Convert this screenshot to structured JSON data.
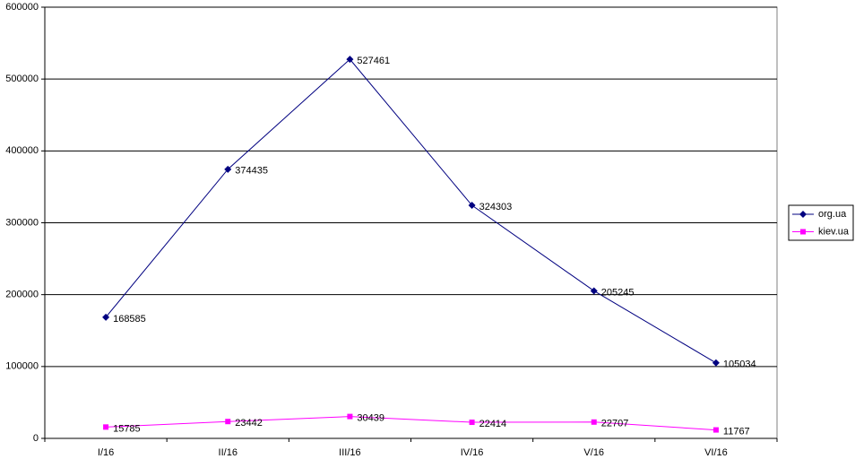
{
  "chart_data": {
    "type": "line",
    "categories": [
      "I/16",
      "II/16",
      "III/16",
      "IV/16",
      "V/16",
      "VI/16"
    ],
    "series": [
      {
        "name": "org.ua",
        "color": "#000080",
        "marker": "diamond",
        "values": [
          168585,
          374435,
          527461,
          324303,
          205245,
          105034
        ]
      },
      {
        "name": "kiev.ua",
        "color": "#ff00ff",
        "marker": "square",
        "values": [
          15785,
          23442,
          30439,
          22414,
          22707,
          11767
        ]
      }
    ],
    "ylim": [
      0,
      600000
    ],
    "yticks": [
      0,
      100000,
      200000,
      300000,
      400000,
      500000,
      600000
    ],
    "grid": true,
    "legend": "right",
    "data_labels": true
  }
}
